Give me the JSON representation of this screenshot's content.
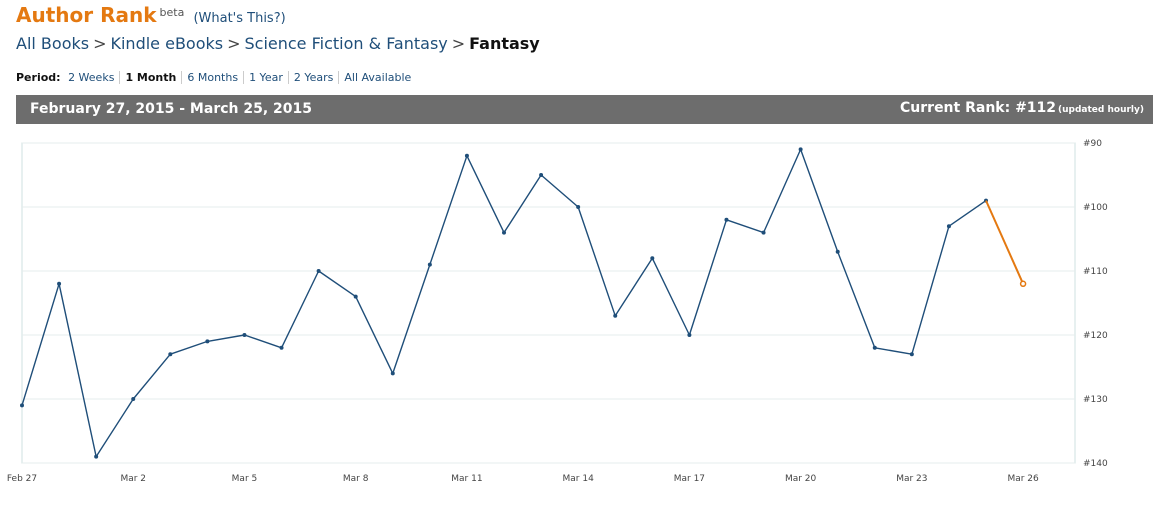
{
  "header": {
    "title": "Author Rank",
    "beta": "beta",
    "whats_this": "(What's This?)"
  },
  "breadcrumb": {
    "items": [
      "All Books",
      "Kindle eBooks",
      "Science Fiction & Fantasy"
    ],
    "current": "Fantasy",
    "separator": ">"
  },
  "period": {
    "label": "Period:",
    "options": [
      "2 Weeks",
      "1 Month",
      "6 Months",
      "1 Year",
      "2 Years",
      "All Available"
    ],
    "selected": "1 Month"
  },
  "bar": {
    "date_range": "February 27, 2015 - March 25, 2015",
    "current_rank_label": "Current Rank: #112",
    "updated_note": "(updated hourly)"
  },
  "colors": {
    "accent": "#e47911",
    "link": "#1f4e79",
    "bar_bg": "#6d6d6d",
    "line": "#1f4e79",
    "current_segment": "#e47911"
  },
  "chart_data": {
    "type": "line",
    "title": "",
    "xlabel": "",
    "ylabel": "",
    "y_inverted": true,
    "ylim": [
      90,
      140
    ],
    "y_ticks": [
      "#90",
      "#100",
      "#110",
      "#120",
      "#130",
      "#140"
    ],
    "x_ticks": [
      "Feb 27",
      "Mar 2",
      "Mar 5",
      "Mar 8",
      "Mar 11",
      "Mar 14",
      "Mar 17",
      "Mar 20",
      "Mar 23",
      "Mar 26"
    ],
    "x_tick_positions": [
      0,
      3,
      6,
      9,
      12,
      15,
      18,
      21,
      24,
      27
    ],
    "x_range": [
      0,
      28.4
    ],
    "grid": true,
    "series": [
      {
        "values": [
          131,
          112,
          139,
          130,
          123,
          121,
          120,
          122,
          110,
          114,
          126,
          109,
          92,
          104,
          95,
          100,
          117,
          108,
          120,
          102,
          104,
          91,
          107,
          122,
          123,
          103,
          99
        ]
      },
      {
        "values_from_index": 26,
        "values": [
          99,
          112
        ]
      }
    ]
  }
}
